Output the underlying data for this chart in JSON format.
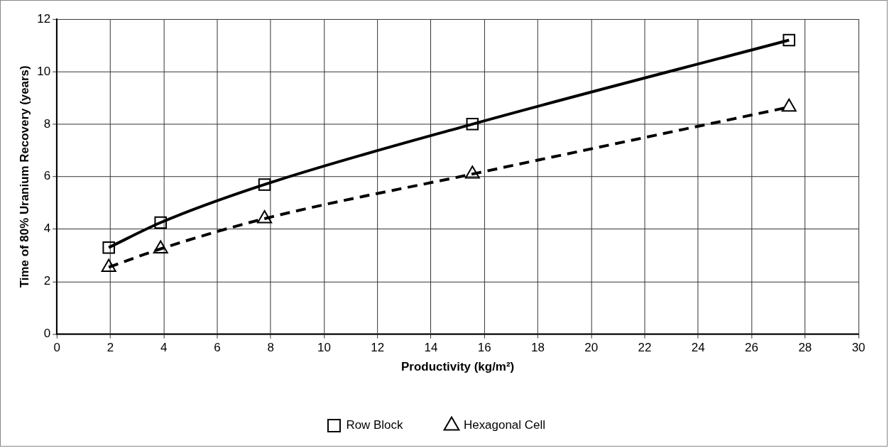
{
  "chart_data": {
    "type": "line",
    "xlabel": "Productivity (kg/m²)",
    "ylabel": "Time of 80% Uranium Recovery (years)",
    "xlim": [
      0,
      30
    ],
    "xticks": [
      0,
      2,
      4,
      6,
      8,
      10,
      12,
      14,
      16,
      18,
      20,
      22,
      24,
      26,
      28,
      30
    ],
    "ylim": [
      0,
      12
    ],
    "yticks": [
      0,
      2,
      4,
      6,
      8,
      10,
      12
    ],
    "grid": true,
    "legend": "bottom",
    "x": [
      1.94,
      3.88,
      7.77,
      15.55,
      27.4
    ],
    "series": [
      {
        "name": "Row Block",
        "color": "#000000",
        "values": [
          3.3,
          4.25,
          5.7,
          8.0,
          11.2
        ],
        "marker": "square",
        "line_style": "solid"
      },
      {
        "name": "Hexagonal Cell",
        "color": "#000000",
        "values": [
          2.55,
          3.25,
          4.4,
          6.1,
          8.65
        ],
        "marker": "triangle",
        "line_style": "dashed"
      }
    ]
  }
}
